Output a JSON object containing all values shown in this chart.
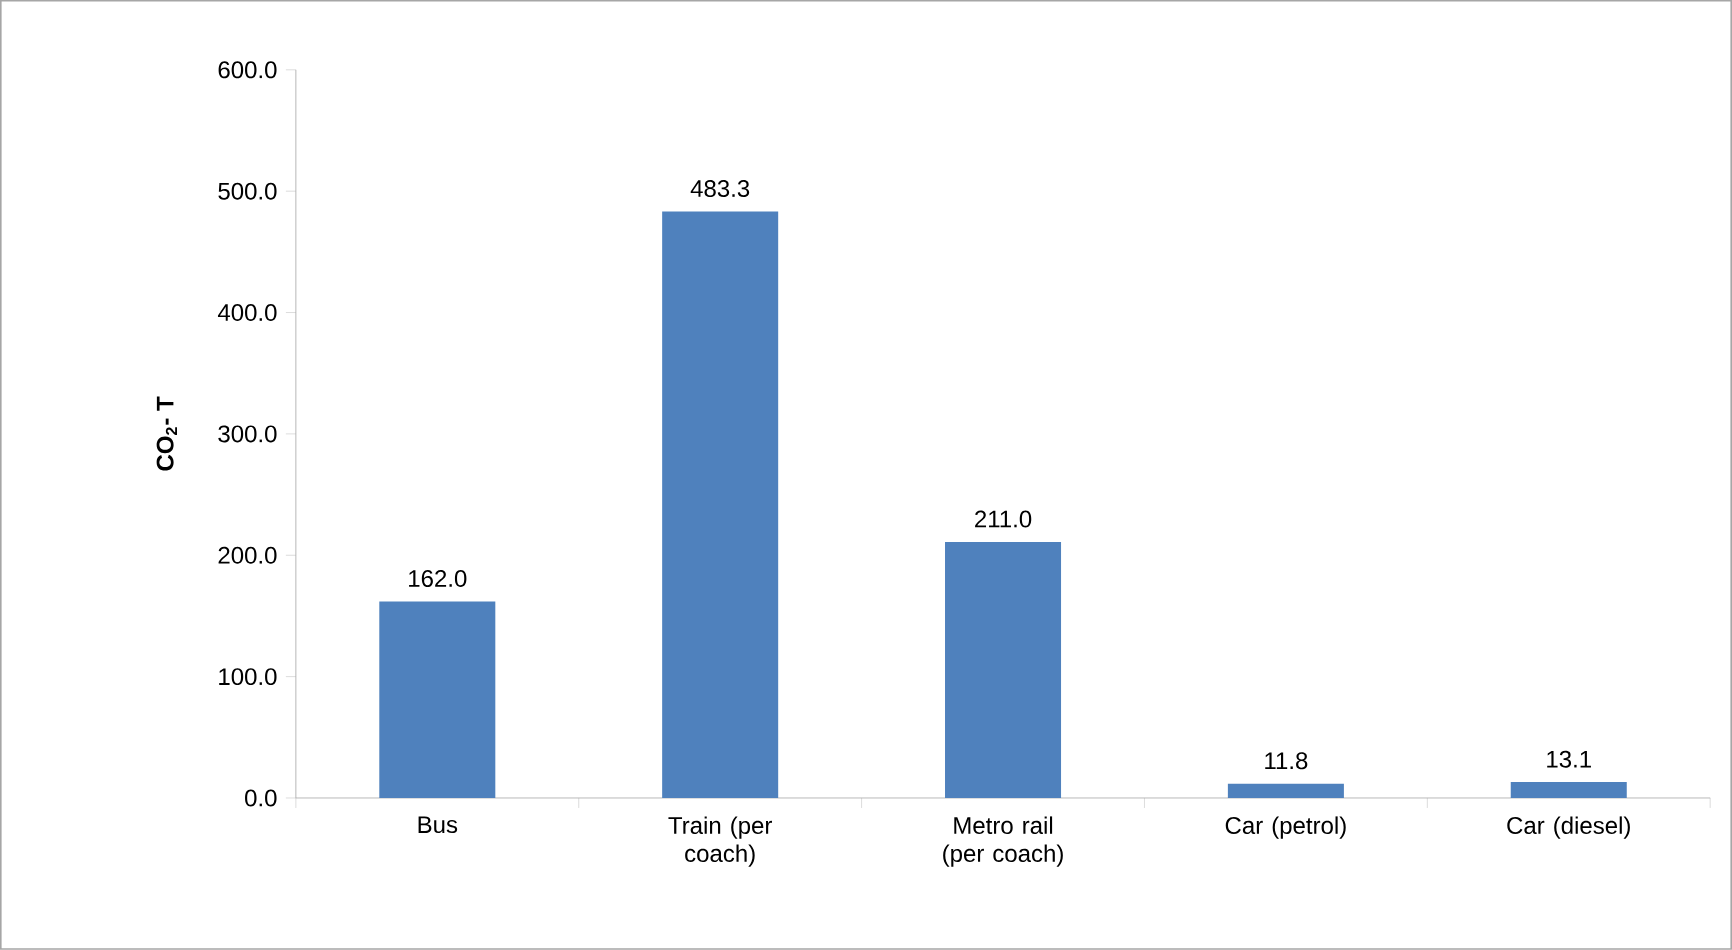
{
  "chart_data": {
    "type": "bar",
    "ylabel": "CO$_{2}$- T",
    "categories": [
      "Bus",
      "Train (per coach)",
      "Metro rail (per coach)",
      "Car (petrol)",
      "Car (diesel)"
    ],
    "values": [
      162.0,
      483.3,
      211.0,
      11.8,
      13.1
    ],
    "value_labels": [
      "162.0",
      "483.3",
      "211.0",
      "11.8",
      "13.1"
    ],
    "color": "#4f81bd",
    "ylim": [
      0,
      600
    ],
    "yticks": [
      {
        "value": 0,
        "label": "0.0"
      },
      {
        "value": 100,
        "label": "100.0"
      },
      {
        "value": 200,
        "label": "200.0"
      },
      {
        "value": 300,
        "label": "300.0"
      },
      {
        "value": 400,
        "label": "400.0"
      },
      {
        "value": 500,
        "label": "500.0"
      },
      {
        "value": 600,
        "label": "600.0"
      }
    ],
    "grid": false
  }
}
